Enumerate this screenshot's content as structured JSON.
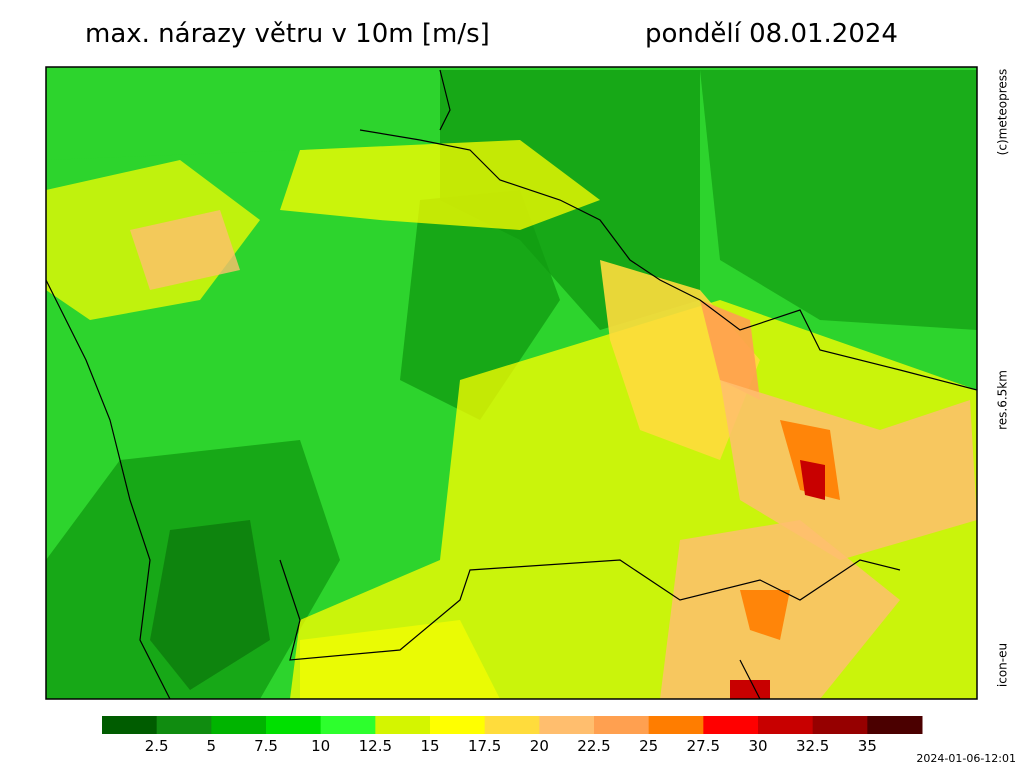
{
  "header": {
    "title": "max. nárazy větru v 10m [m/s]",
    "date": "pondělí 08.01.2024"
  },
  "side_labels": [
    "(c)meteopress",
    "res.6.5km",
    "icon-eu"
  ],
  "colorbar": {
    "colors": [
      "#005c00",
      "#108c10",
      "#00b400",
      "#00e000",
      "#2dff2d",
      "#d4f500",
      "#ffff00",
      "#ffdc3c",
      "#ffbe6e",
      "#ffa050",
      "#ff7d00",
      "#ff0000",
      "#c80000",
      "#960000",
      "#4b0000"
    ],
    "labels": [
      2.5,
      5,
      7.5,
      10,
      12.5,
      15,
      17.5,
      20,
      22.5,
      25,
      27.5,
      30,
      32.5,
      35
    ]
  },
  "timestamp": "2024-01-06-12:01"
}
